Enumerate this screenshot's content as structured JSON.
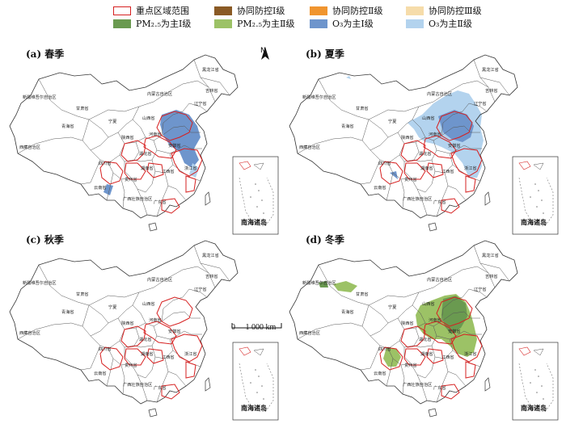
{
  "legend": [
    {
      "label": "重点区域范围",
      "color": "#ffffff",
      "border": "#d62020"
    },
    {
      "label": "协同防控Ⅰ级",
      "color": "#8a5a25",
      "border": "#8a5a25"
    },
    {
      "label": "协同防控Ⅱ级",
      "color": "#f0952f",
      "border": "#f0952f"
    },
    {
      "label": "协同防控Ⅲ级",
      "color": "#f6dcaa",
      "border": "#f6dcaa"
    },
    {
      "label": "PM₂.₅为主Ⅰ级",
      "color": "#6a9a50",
      "border": "#6a9a50"
    },
    {
      "label": "PM₂.₅为主Ⅱ级",
      "color": "#9cc266",
      "border": "#9cc266"
    },
    {
      "label": "O₃为主Ⅰ级",
      "color": "#6e95cc",
      "border": "#6e95cc"
    },
    {
      "label": "O₃为主Ⅱ级",
      "color": "#b3d3ee",
      "border": "#b3d3ee"
    }
  ],
  "panels": [
    {
      "label": "(a) 春季"
    },
    {
      "label": "(b) 夏季"
    },
    {
      "label": "(c) 秋季"
    },
    {
      "label": "(d) 冬季"
    }
  ],
  "north_arrow": "N",
  "scale_bar": {
    "zero": "0",
    "distance": "1 000 km"
  },
  "inset_label": "南海诸岛",
  "provinces": {
    "xinjiang": "新疆维吾尔自治区",
    "xizang": "西藏自治区",
    "qinghai": "青海省",
    "gansu": "甘肃省",
    "neimenggu": "内蒙古自治区",
    "heilongjiang": "黑龙江省",
    "jilin": "吉林省",
    "liaoning": "辽宁省",
    "sichuan": "四川省",
    "yunnan": "云南省",
    "guizhou": "贵州省",
    "hubei": "湖北省",
    "hunan": "湖南省",
    "jiangxi": "江西省",
    "zhejiang": "浙江省",
    "guangxi": "广西壮族自治区",
    "guangdong": "广东省",
    "anhui": "安徽省",
    "henan": "河南省",
    "shanxi": "山西省",
    "ningxia": "宁夏",
    "shaanxi": "陕西省"
  }
}
